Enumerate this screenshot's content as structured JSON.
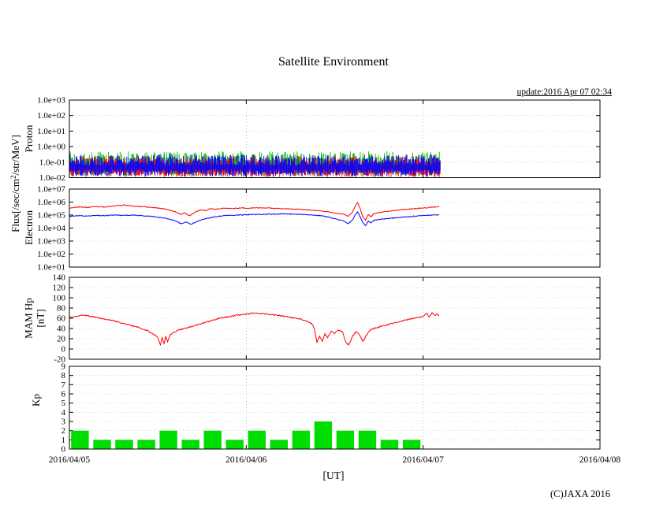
{
  "page": {
    "title": "Satellite Environment",
    "update_text": "update:2016 Apr 07 02:34",
    "flux_label": {
      "pre": "Flux[/sec/cm",
      "sup": "2",
      "post": "/str/MeV]"
    },
    "x_categories": [
      "2016/04/05",
      "2016/04/06",
      "2016/04/07",
      "2016/04/08"
    ],
    "xaxis_unit": "[UT]",
    "copyright": "(C)JAXA 2016"
  },
  "chart_data": [
    {
      "type": "scatter",
      "name": "Proton",
      "ylabel": "Proton",
      "yscale": "log",
      "ylim": [
        0.01,
        1000
      ],
      "ytick_labels": [
        "1.0e+03",
        "1.0e+02",
        "1.0e+01",
        "1.0e+00",
        "1.0e-01",
        "1.0e-02"
      ],
      "x_start_day": 0,
      "x_end_day": 2.1,
      "noise_seed": 7,
      "description": "Dense noisy proton flux band between ~0.01 and ~0.4 /sec/cm2/str/MeV, three overlapping channels, data ends 2016 Apr 07 ~02:30",
      "series": [
        {
          "name": "proton-channel-green",
          "color": "#00b400",
          "top_min": 0.07,
          "top_max": 0.5,
          "bot_min": 0.012,
          "bot_max": 0.04
        },
        {
          "name": "proton-channel-red",
          "color": "#ff0000",
          "top_min": 0.05,
          "top_max": 0.25,
          "bot_min": 0.011,
          "bot_max": 0.03
        },
        {
          "name": "proton-channel-blue",
          "color": "#0000ff",
          "top_min": 0.06,
          "top_max": 0.32,
          "bot_min": 0.012,
          "bot_max": 0.035
        }
      ]
    },
    {
      "type": "line",
      "name": "Electron",
      "ylabel": "Electron",
      "yscale": "log",
      "ylim": [
        10,
        10000000
      ],
      "ytick_labels": [
        "1.0e+07",
        "1.0e+06",
        "1.0e+05",
        "1.0e+04",
        "1.0e+03",
        "1.0e+02",
        "1.0e+01"
      ],
      "series": [
        {
          "name": "electron-flux-red",
          "color": "#ff0000",
          "points": [
            [
              0,
              350000
            ],
            [
              0.05,
              420000
            ],
            [
              0.1,
              390000
            ],
            [
              0.15,
              440000
            ],
            [
              0.2,
              410000
            ],
            [
              0.25,
              500000
            ],
            [
              0.27,
              580000
            ],
            [
              0.29,
              520000
            ],
            [
              0.31,
              620000
            ],
            [
              0.33,
              550000
            ],
            [
              0.37,
              480000
            ],
            [
              0.42,
              430000
            ],
            [
              0.47,
              380000
            ],
            [
              0.52,
              330000
            ],
            [
              0.56,
              260000
            ],
            [
              0.6,
              180000
            ],
            [
              0.63,
              110000
            ],
            [
              0.65,
              150000
            ],
            [
              0.68,
              90000
            ],
            [
              0.71,
              160000
            ],
            [
              0.74,
              250000
            ],
            [
              0.77,
              220000
            ],
            [
              0.8,
              320000
            ],
            [
              0.83,
              280000
            ],
            [
              0.87,
              340000
            ],
            [
              0.92,
              320000
            ],
            [
              0.97,
              350000
            ],
            [
              1.02,
              340000
            ],
            [
              1.07,
              360000
            ],
            [
              1.12,
              350000
            ],
            [
              1.17,
              330000
            ],
            [
              1.22,
              310000
            ],
            [
              1.27,
              290000
            ],
            [
              1.32,
              270000
            ],
            [
              1.37,
              240000
            ],
            [
              1.42,
              210000
            ],
            [
              1.47,
              170000
            ],
            [
              1.52,
              130000
            ],
            [
              1.55,
              120000
            ],
            [
              1.575,
              80000
            ],
            [
              1.6,
              160000
            ],
            [
              1.615,
              450000
            ],
            [
              1.63,
              900000
            ],
            [
              1.645,
              300000
            ],
            [
              1.66,
              70000
            ],
            [
              1.675,
              40000
            ],
            [
              1.69,
              110000
            ],
            [
              1.705,
              70000
            ],
            [
              1.72,
              130000
            ],
            [
              1.76,
              160000
            ],
            [
              1.81,
              200000
            ],
            [
              1.86,
              240000
            ],
            [
              1.91,
              280000
            ],
            [
              1.96,
              320000
            ],
            [
              2.01,
              360000
            ],
            [
              2.05,
              400000
            ],
            [
              2.09,
              420000
            ]
          ]
        },
        {
          "name": "electron-flux-blue",
          "color": "#0000ff",
          "points": [
            [
              0,
              80000
            ],
            [
              0.05,
              90000
            ],
            [
              0.1,
              85000
            ],
            [
              0.15,
              95000
            ],
            [
              0.2,
              90000
            ],
            [
              0.25,
              100000
            ],
            [
              0.3,
              95000
            ],
            [
              0.35,
              100000
            ],
            [
              0.4,
              92000
            ],
            [
              0.45,
              82000
            ],
            [
              0.5,
              70000
            ],
            [
              0.55,
              55000
            ],
            [
              0.6,
              35000
            ],
            [
              0.63,
              22000
            ],
            [
              0.66,
              28000
            ],
            [
              0.69,
              20000
            ],
            [
              0.72,
              32000
            ],
            [
              0.75,
              45000
            ],
            [
              0.79,
              60000
            ],
            [
              0.83,
              75000
            ],
            [
              0.87,
              88000
            ],
            [
              0.92,
              96000
            ],
            [
              0.97,
              102000
            ],
            [
              1.02,
              107000
            ],
            [
              1.07,
              112000
            ],
            [
              1.12,
              116000
            ],
            [
              1.17,
              120000
            ],
            [
              1.22,
              124000
            ],
            [
              1.27,
              120000
            ],
            [
              1.32,
              113000
            ],
            [
              1.37,
              102000
            ],
            [
              1.42,
              88000
            ],
            [
              1.47,
              68000
            ],
            [
              1.52,
              45000
            ],
            [
              1.55,
              35000
            ],
            [
              1.575,
              22000
            ],
            [
              1.6,
              40000
            ],
            [
              1.615,
              100000
            ],
            [
              1.63,
              180000
            ],
            [
              1.645,
              70000
            ],
            [
              1.66,
              25000
            ],
            [
              1.675,
              15000
            ],
            [
              1.69,
              35000
            ],
            [
              1.705,
              25000
            ],
            [
              1.72,
              40000
            ],
            [
              1.76,
              48000
            ],
            [
              1.81,
              56000
            ],
            [
              1.86,
              64000
            ],
            [
              1.91,
              74000
            ],
            [
              1.96,
              84000
            ],
            [
              2.01,
              94000
            ],
            [
              2.05,
              100000
            ],
            [
              2.09,
              105000
            ]
          ]
        }
      ]
    },
    {
      "type": "line",
      "name": "MAM Hp",
      "ylabel": "MAM Hp [nT]",
      "ylabel_line1": "MAM Hp",
      "ylabel_line2": "[nT]",
      "yscale": "linear",
      "ylim": [
        -20,
        140
      ],
      "ytick_labels": [
        "140",
        "120",
        "100",
        "80",
        "60",
        "40",
        "20",
        "0",
        "-20"
      ],
      "series": [
        {
          "name": "hp-field-red",
          "color": "#ff0000",
          "points": [
            [
              0,
              62
            ],
            [
              0.04,
              64
            ],
            [
              0.08,
              66
            ],
            [
              0.12,
              64
            ],
            [
              0.16,
              61
            ],
            [
              0.2,
              58
            ],
            [
              0.25,
              55
            ],
            [
              0.3,
              50
            ],
            [
              0.35,
              46
            ],
            [
              0.4,
              41
            ],
            [
              0.44,
              36
            ],
            [
              0.48,
              28
            ],
            [
              0.5,
              22
            ],
            [
              0.515,
              8
            ],
            [
              0.525,
              22
            ],
            [
              0.535,
              10
            ],
            [
              0.545,
              25
            ],
            [
              0.555,
              14
            ],
            [
              0.57,
              28
            ],
            [
              0.59,
              33
            ],
            [
              0.62,
              37
            ],
            [
              0.66,
              41
            ],
            [
              0.7,
              45
            ],
            [
              0.75,
              50
            ],
            [
              0.8,
              55
            ],
            [
              0.85,
              60
            ],
            [
              0.9,
              63
            ],
            [
              0.95,
              66
            ],
            [
              1.0,
              68
            ],
            [
              1.05,
              70
            ],
            [
              1.1,
              69
            ],
            [
              1.15,
              67
            ],
            [
              1.2,
              65
            ],
            [
              1.25,
              62
            ],
            [
              1.3,
              59
            ],
            [
              1.34,
              55
            ],
            [
              1.37,
              50
            ],
            [
              1.385,
              40
            ],
            [
              1.4,
              12
            ],
            [
              1.415,
              25
            ],
            [
              1.43,
              15
            ],
            [
              1.445,
              30
            ],
            [
              1.46,
              22
            ],
            [
              1.48,
              35
            ],
            [
              1.5,
              30
            ],
            [
              1.52,
              37
            ],
            [
              1.545,
              33
            ],
            [
              1.565,
              12
            ],
            [
              1.58,
              8
            ],
            [
              1.6,
              24
            ],
            [
              1.62,
              34
            ],
            [
              1.64,
              28
            ],
            [
              1.66,
              15
            ],
            [
              1.68,
              27
            ],
            [
              1.7,
              37
            ],
            [
              1.74,
              42
            ],
            [
              1.78,
              46
            ],
            [
              1.83,
              50
            ],
            [
              1.88,
              55
            ],
            [
              1.93,
              59
            ],
            [
              1.97,
              62
            ],
            [
              2.0,
              64
            ],
            [
              2.02,
              70
            ],
            [
              2.035,
              63
            ],
            [
              2.05,
              71
            ],
            [
              2.065,
              66
            ],
            [
              2.08,
              68
            ],
            [
              2.09,
              64
            ]
          ]
        }
      ]
    },
    {
      "type": "bar",
      "name": "Kp",
      "ylabel": "Kp",
      "yscale": "linear",
      "ylim": [
        0,
        9
      ],
      "ytick_labels": [
        "9",
        "8",
        "7",
        "6",
        "5",
        "4",
        "3",
        "2",
        "1",
        "0"
      ],
      "bar_interval_hours": 3,
      "color": "#00dd00",
      "values": [
        2,
        1,
        1,
        1,
        2,
        1,
        2,
        1,
        2,
        1,
        2,
        3,
        2,
        2,
        1,
        1
      ]
    }
  ]
}
